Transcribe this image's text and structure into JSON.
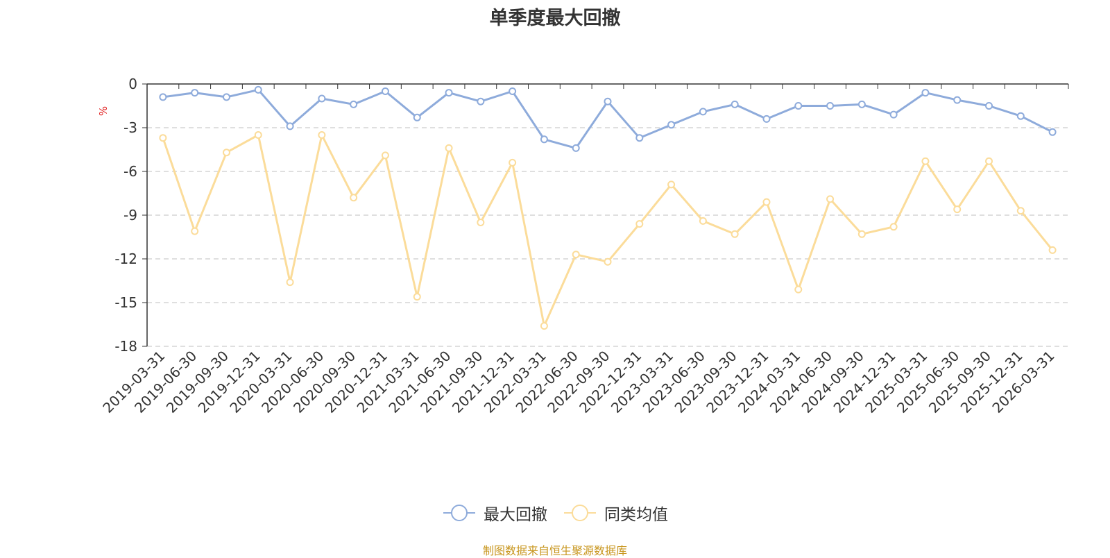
{
  "colors": {
    "series1": "#8eabdb",
    "series2": "#fbdc9a",
    "unit": "#e02020",
    "source": "#c8961e"
  },
  "chart_data": {
    "type": "line",
    "title": "单季度最大回撤",
    "ylabel": "%",
    "ylim": [
      -18,
      0
    ],
    "yticks": [
      0,
      -3,
      -6,
      -9,
      -12,
      -15,
      -18
    ],
    "grid": true,
    "legend_position": "bottom-center",
    "categories": [
      "2019-03-31",
      "2019-06-30",
      "2019-09-30",
      "2019-12-31",
      "2020-03-31",
      "2020-06-30",
      "2020-09-30",
      "2020-12-31",
      "2021-03-31",
      "2021-06-30",
      "2021-09-30",
      "2021-12-31",
      "2022-03-31",
      "2022-06-30",
      "2022-09-30",
      "2022-12-31",
      "2023-03-31",
      "2023-06-30",
      "2023-09-30",
      "2023-12-31",
      "2024-03-31",
      "2024-06-30",
      "2024-09-30",
      "2024-12-31",
      "2025-03-31",
      "2025-06-30",
      "2025-09-30",
      "2025-12-31",
      "2026-03-31"
    ],
    "series": [
      {
        "name": "最大回撤",
        "color": "#8eabdb",
        "values": [
          -0.9,
          -0.6,
          -0.9,
          -0.4,
          -2.9,
          -1.0,
          -1.4,
          -0.5,
          -2.3,
          -0.6,
          -1.2,
          -0.5,
          -3.8,
          -4.4,
          -1.2,
          -3.7,
          -2.8,
          -1.9,
          -1.4,
          -2.4,
          -1.5,
          -1.5,
          -1.4,
          -2.1,
          -0.6,
          -1.1,
          -1.5,
          -2.2,
          -3.3
        ]
      },
      {
        "name": "同类均值",
        "color": "#fbdc9a",
        "values": [
          -3.7,
          -10.1,
          -4.7,
          -3.5,
          -13.6,
          -3.5,
          -7.8,
          -4.9,
          -14.6,
          -4.4,
          -9.5,
          -5.4,
          -16.6,
          -11.7,
          -12.2,
          -9.6,
          -6.9,
          -9.4,
          -10.3,
          -8.1,
          -14.1,
          -7.9,
          -10.3,
          -9.8,
          -5.3,
          -8.6,
          -5.3,
          -8.7,
          -11.4
        ]
      }
    ],
    "source_note": "制图数据来自恒生聚源数据库"
  }
}
